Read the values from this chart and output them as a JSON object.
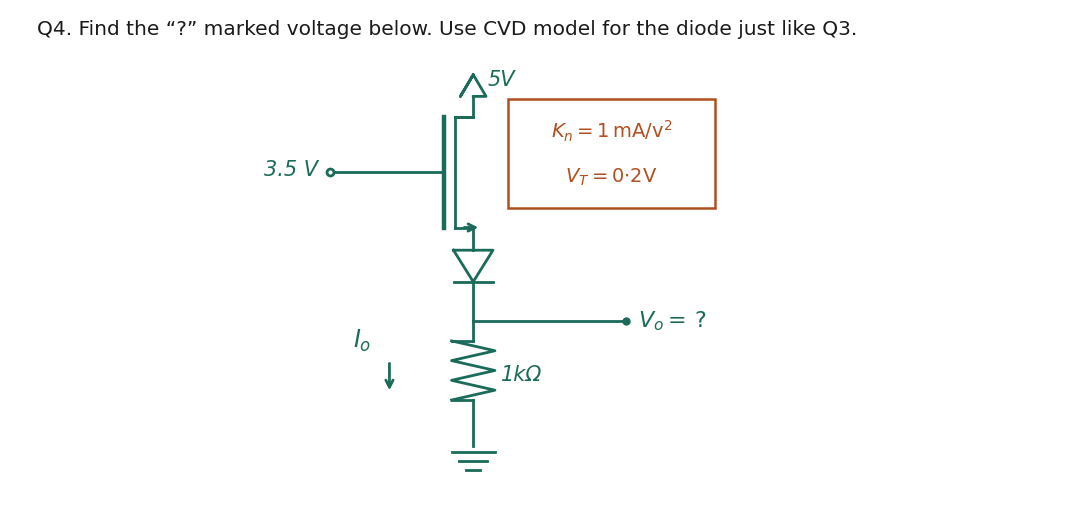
{
  "title_text": "Q4. Find the “?” marked voltage below. Use CVD model for the diode just like Q3.",
  "bg_color": "#ffffff",
  "text_color": "#1a1a1a",
  "circuit_color": "#1a6b5a",
  "box_color": "#b05020",
  "title_fontsize": 14.5,
  "circuit_fontsize": 15,
  "supply_voltage": "5V",
  "input_voltage": "3.5 V",
  "kn_label": "K_n = 1 mA/v^2",
  "vt_label": "V_T = 0·2V",
  "vo_label": "V_o = ?",
  "io_label": "I_o",
  "resistor_label": "1kΩ"
}
